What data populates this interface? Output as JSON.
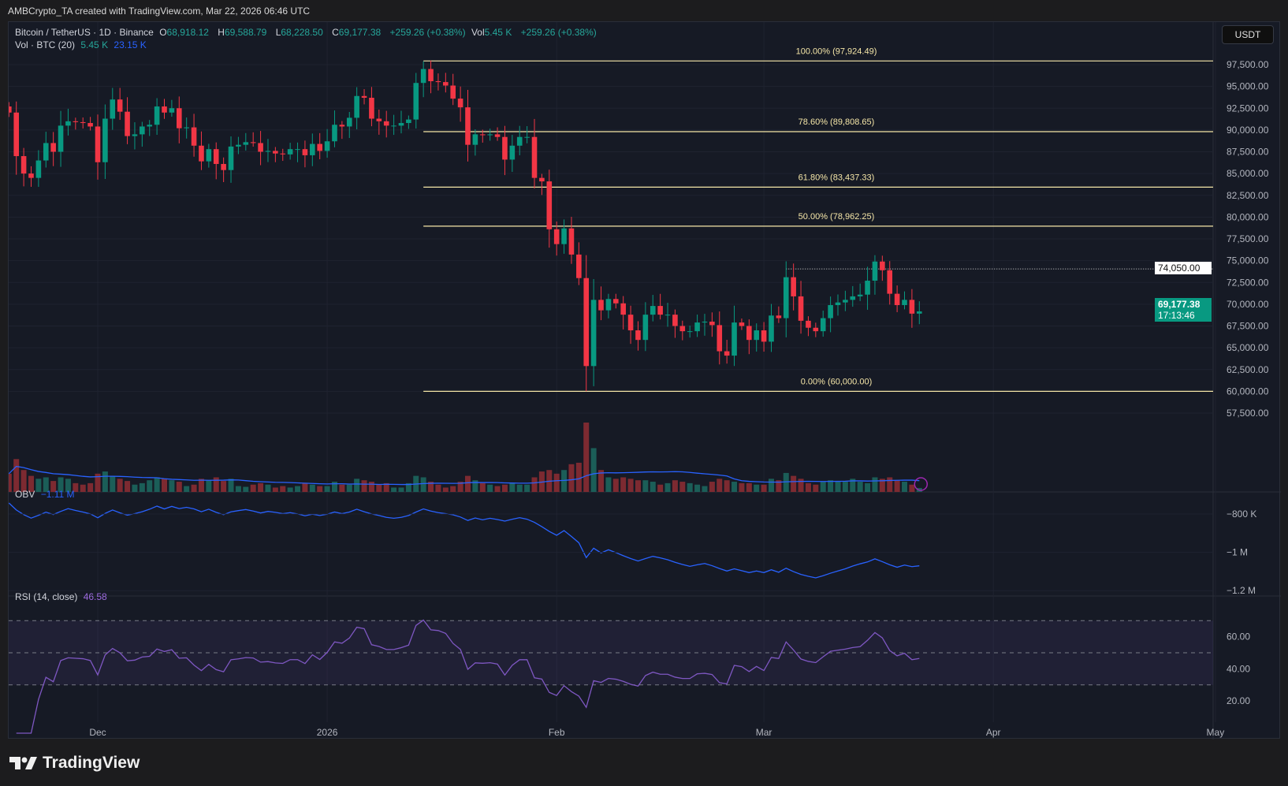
{
  "header": {
    "caption": "AMBCrypto_TA created with TradingView.com, Mar 22, 2026 06:46 UTC"
  },
  "legend": {
    "symbol": "Bitcoin / TetherUS · 1D · Binance",
    "o_label": "O",
    "o": "68,918.12",
    "h_label": "H",
    "h": "69,588.79",
    "l_label": "L",
    "l": "68,228.50",
    "c_label": "C",
    "c": "69,177.38",
    "change": "+259.26 (+0.38%)",
    "vol_label": "Vol",
    "vol": "5.45 K",
    "change2": "+259.26 (+0.38%)",
    "vol_ind": "Vol · BTC (20)",
    "vol_val": "5.45 K",
    "vol_ma": "23.15 K",
    "obv_label": "OBV",
    "obv_val": "−1.11 M",
    "rsi_label": "RSI (14, close)",
    "rsi_val": "46.58"
  },
  "currency_button": "USDT",
  "price_tags": {
    "level": "74,050.00",
    "last": "69,177.38",
    "countdown": "17:13:46"
  },
  "brand": "TradingView",
  "colors": {
    "up": "#089981",
    "down": "#f23645",
    "fib": "#f5e6a8",
    "obv": "#2962ff",
    "rsi": "#7e57c2"
  },
  "chart_data": {
    "type": "candlestick",
    "title": "Bitcoin / TetherUS · 1D · Binance",
    "start_date": "2025-11-19",
    "price_unit": "USDT",
    "closes_k": [
      92.0,
      87.0,
      85.0,
      84.5,
      86.5,
      88.5,
      87.5,
      90.5,
      91.0,
      90.9,
      90.8,
      90.4,
      86.3,
      91.3,
      93.5,
      92.1,
      89.3,
      89.5,
      90.4,
      90.6,
      92.7,
      92.0,
      92.5,
      90.2,
      90.3,
      88.2,
      86.4,
      87.8,
      86.1,
      85.4,
      88.1,
      88.3,
      88.6,
      88.5,
      87.5,
      87.6,
      87.3,
      87.2,
      87.8,
      87.8,
      87.1,
      88.4,
      87.6,
      88.7,
      90.6,
      90.4,
      91.4,
      93.9,
      93.7,
      91.3,
      91.0,
      90.5,
      90.5,
      90.8,
      91.2,
      95.4,
      97.0,
      95.6,
      95.5,
      95.1,
      93.6,
      92.6,
      88.3,
      89.5,
      89.4,
      89.5,
      89.2,
      86.6,
      88.2,
      89.2,
      89.2,
      84.5,
      84.1,
      78.6,
      76.9,
      78.7,
      75.7,
      73.0,
      62.9,
      70.5,
      69.3,
      70.6,
      70.1,
      68.8,
      67.0,
      65.9,
      68.8,
      69.8,
      68.8,
      68.8,
      67.5,
      66.9,
      66.9,
      67.9,
      68.0,
      67.6,
      64.6,
      64.1,
      67.9,
      67.5,
      65.9,
      67.0,
      65.7,
      68.7,
      68.4,
      73.1,
      70.9,
      68.1,
      67.3,
      66.9,
      68.4,
      69.9,
      70.2,
      70.5,
      70.9,
      71.1,
      72.7,
      74.9,
      73.9,
      71.2,
      69.9,
      70.5,
      68.918,
      69.177
    ],
    "volumes_k": [
      25,
      45,
      30,
      22,
      18,
      20,
      15,
      20,
      18,
      12,
      10,
      12,
      25,
      28,
      22,
      18,
      15,
      10,
      12,
      16,
      20,
      18,
      16,
      14,
      8,
      10,
      18,
      16,
      20,
      15,
      18,
      8,
      7,
      10,
      12,
      10,
      6,
      8,
      6,
      8,
      12,
      10,
      8,
      8,
      14,
      10,
      10,
      18,
      16,
      14,
      10,
      12,
      6,
      6,
      12,
      22,
      20,
      14,
      10,
      6,
      8,
      14,
      22,
      16,
      12,
      10,
      8,
      10,
      12,
      10,
      10,
      20,
      28,
      30,
      25,
      30,
      38,
      40,
      95,
      60,
      30,
      20,
      18,
      20,
      18,
      16,
      16,
      14,
      10,
      12,
      16,
      14,
      12,
      10,
      8,
      14,
      18,
      16,
      14,
      12,
      12,
      10,
      10,
      18,
      16,
      26,
      22,
      18,
      12,
      10,
      14,
      16,
      14,
      14,
      18,
      14,
      12,
      20,
      18,
      20,
      16,
      14,
      10,
      5.45
    ],
    "y_ticks": [
      "97,500.00",
      "95,000.00",
      "92,500.00",
      "90,000.00",
      "87,500.00",
      "85,000.00",
      "82,500.00",
      "80,000.00",
      "77,500.00",
      "75,000.00",
      "72,500.00",
      "70,000.00",
      "67,500.00",
      "65,000.00",
      "62,500.00",
      "60,000.00",
      "57,500.00"
    ],
    "y_tick_values": [
      97500,
      95000,
      92500,
      90000,
      87500,
      85000,
      82500,
      80000,
      77500,
      75000,
      72500,
      70000,
      67500,
      65000,
      62500,
      60000,
      57500
    ],
    "x_ticks": [
      {
        "label": "Dec",
        "date": "2025-12-01"
      },
      {
        "label": "2026",
        "date": "2026-01-01"
      },
      {
        "label": "Feb",
        "date": "2026-02-01"
      },
      {
        "label": "Mar",
        "date": "2026-03-01"
      },
      {
        "label": "Apr",
        "date": "2026-04-01"
      },
      {
        "label": "May",
        "date": "2026-05-01"
      }
    ],
    "fib": {
      "start_date": "2026-01-14",
      "levels": [
        {
          "label": "100.00% (97,924.49)",
          "price": 97924.49
        },
        {
          "label": "78.60% (89,808.65)",
          "price": 89808.65
        },
        {
          "label": "61.80% (83,437.33)",
          "price": 83437.33
        },
        {
          "label": "50.00% (78,962.25)",
          "price": 78962.25
        },
        {
          "label": "0.00% (60,000.00)",
          "price": 60000
        }
      ]
    },
    "horizontal_level": {
      "price": 74050,
      "start_date": "2026-03-04"
    },
    "obv_ticks": [
      {
        "label": "−800 K",
        "value": -800
      },
      {
        "label": "−1 M",
        "value": -1000
      },
      {
        "label": "−1.2 M",
        "value": -1200
      }
    ],
    "rsi_ticks": [
      {
        "label": "60.00",
        "value": 60
      },
      {
        "label": "40.00",
        "value": 40
      },
      {
        "label": "20.00",
        "value": 20
      }
    ],
    "rsi_bands": [
      70,
      50,
      30
    ]
  }
}
